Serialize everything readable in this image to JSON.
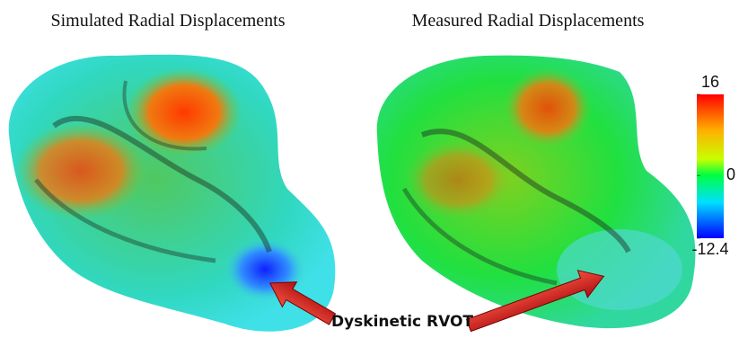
{
  "panels": [
    {
      "title": "Simulated Radial Displacements"
    },
    {
      "title": "Measured Radial Displacements"
    }
  ],
  "colorbar": {
    "ticks": [
      16,
      0,
      -12.4
    ],
    "lim": [
      -12.4,
      16
    ]
  },
  "annotation": "Dyskinetic RVOT"
}
